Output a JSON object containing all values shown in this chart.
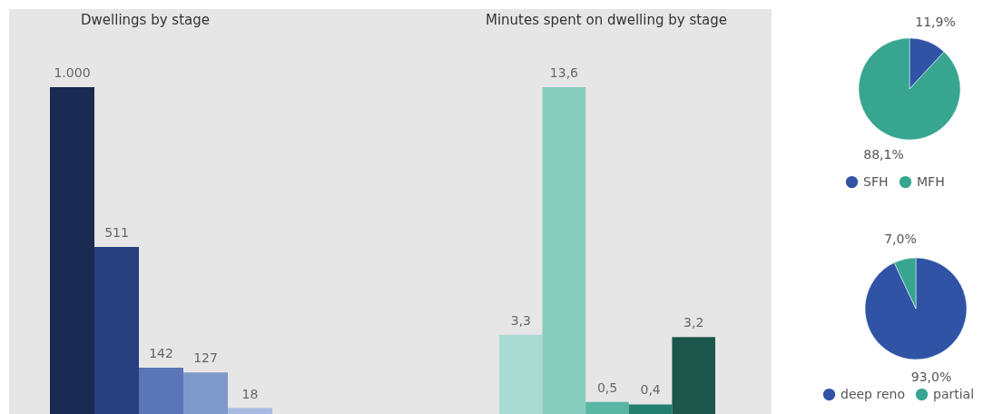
{
  "chart_data": [
    {
      "type": "bar",
      "title": "Dwellings by stage",
      "categories": [
        null,
        null,
        null,
        null,
        null
      ],
      "values": [
        1000,
        511,
        142,
        127,
        18
      ],
      "colors": [
        "#1b2a52",
        "#27407f",
        "#5a75b8",
        "#8099cb",
        "#a9bbe3"
      ],
      "value_labels": [
        "1.000",
        "511",
        "142",
        "127",
        "18"
      ]
    },
    {
      "type": "bar",
      "title": "Minutes spent on dwelling by stage",
      "categories": [
        null,
        null,
        null,
        null,
        null
      ],
      "values": [
        3.3,
        13.6,
        0.5,
        0.4,
        3.2
      ],
      "colors": [
        "#a9dbd2",
        "#88ccbe",
        "#58b6a3",
        "#23806f",
        "#1d564a"
      ],
      "value_labels": [
        "3,3",
        "13,6",
        "0,5",
        "0,4",
        "3,2"
      ]
    },
    {
      "type": "pie",
      "categories": [
        "SFH",
        "MFH"
      ],
      "values": [
        11.9,
        88.1
      ],
      "colors": [
        "#3053a6",
        "#37a58f"
      ],
      "value_labels": [
        "11,9%",
        "88,1%"
      ],
      "legend": "bottom"
    },
    {
      "type": "pie",
      "categories": [
        "deep reno",
        "partial"
      ],
      "values": [
        93.0,
        7.0
      ],
      "colors": [
        "#3053a6",
        "#37a58f"
      ],
      "value_labels": [
        "93,0%",
        "7,0%"
      ],
      "legend": "bottom"
    }
  ]
}
